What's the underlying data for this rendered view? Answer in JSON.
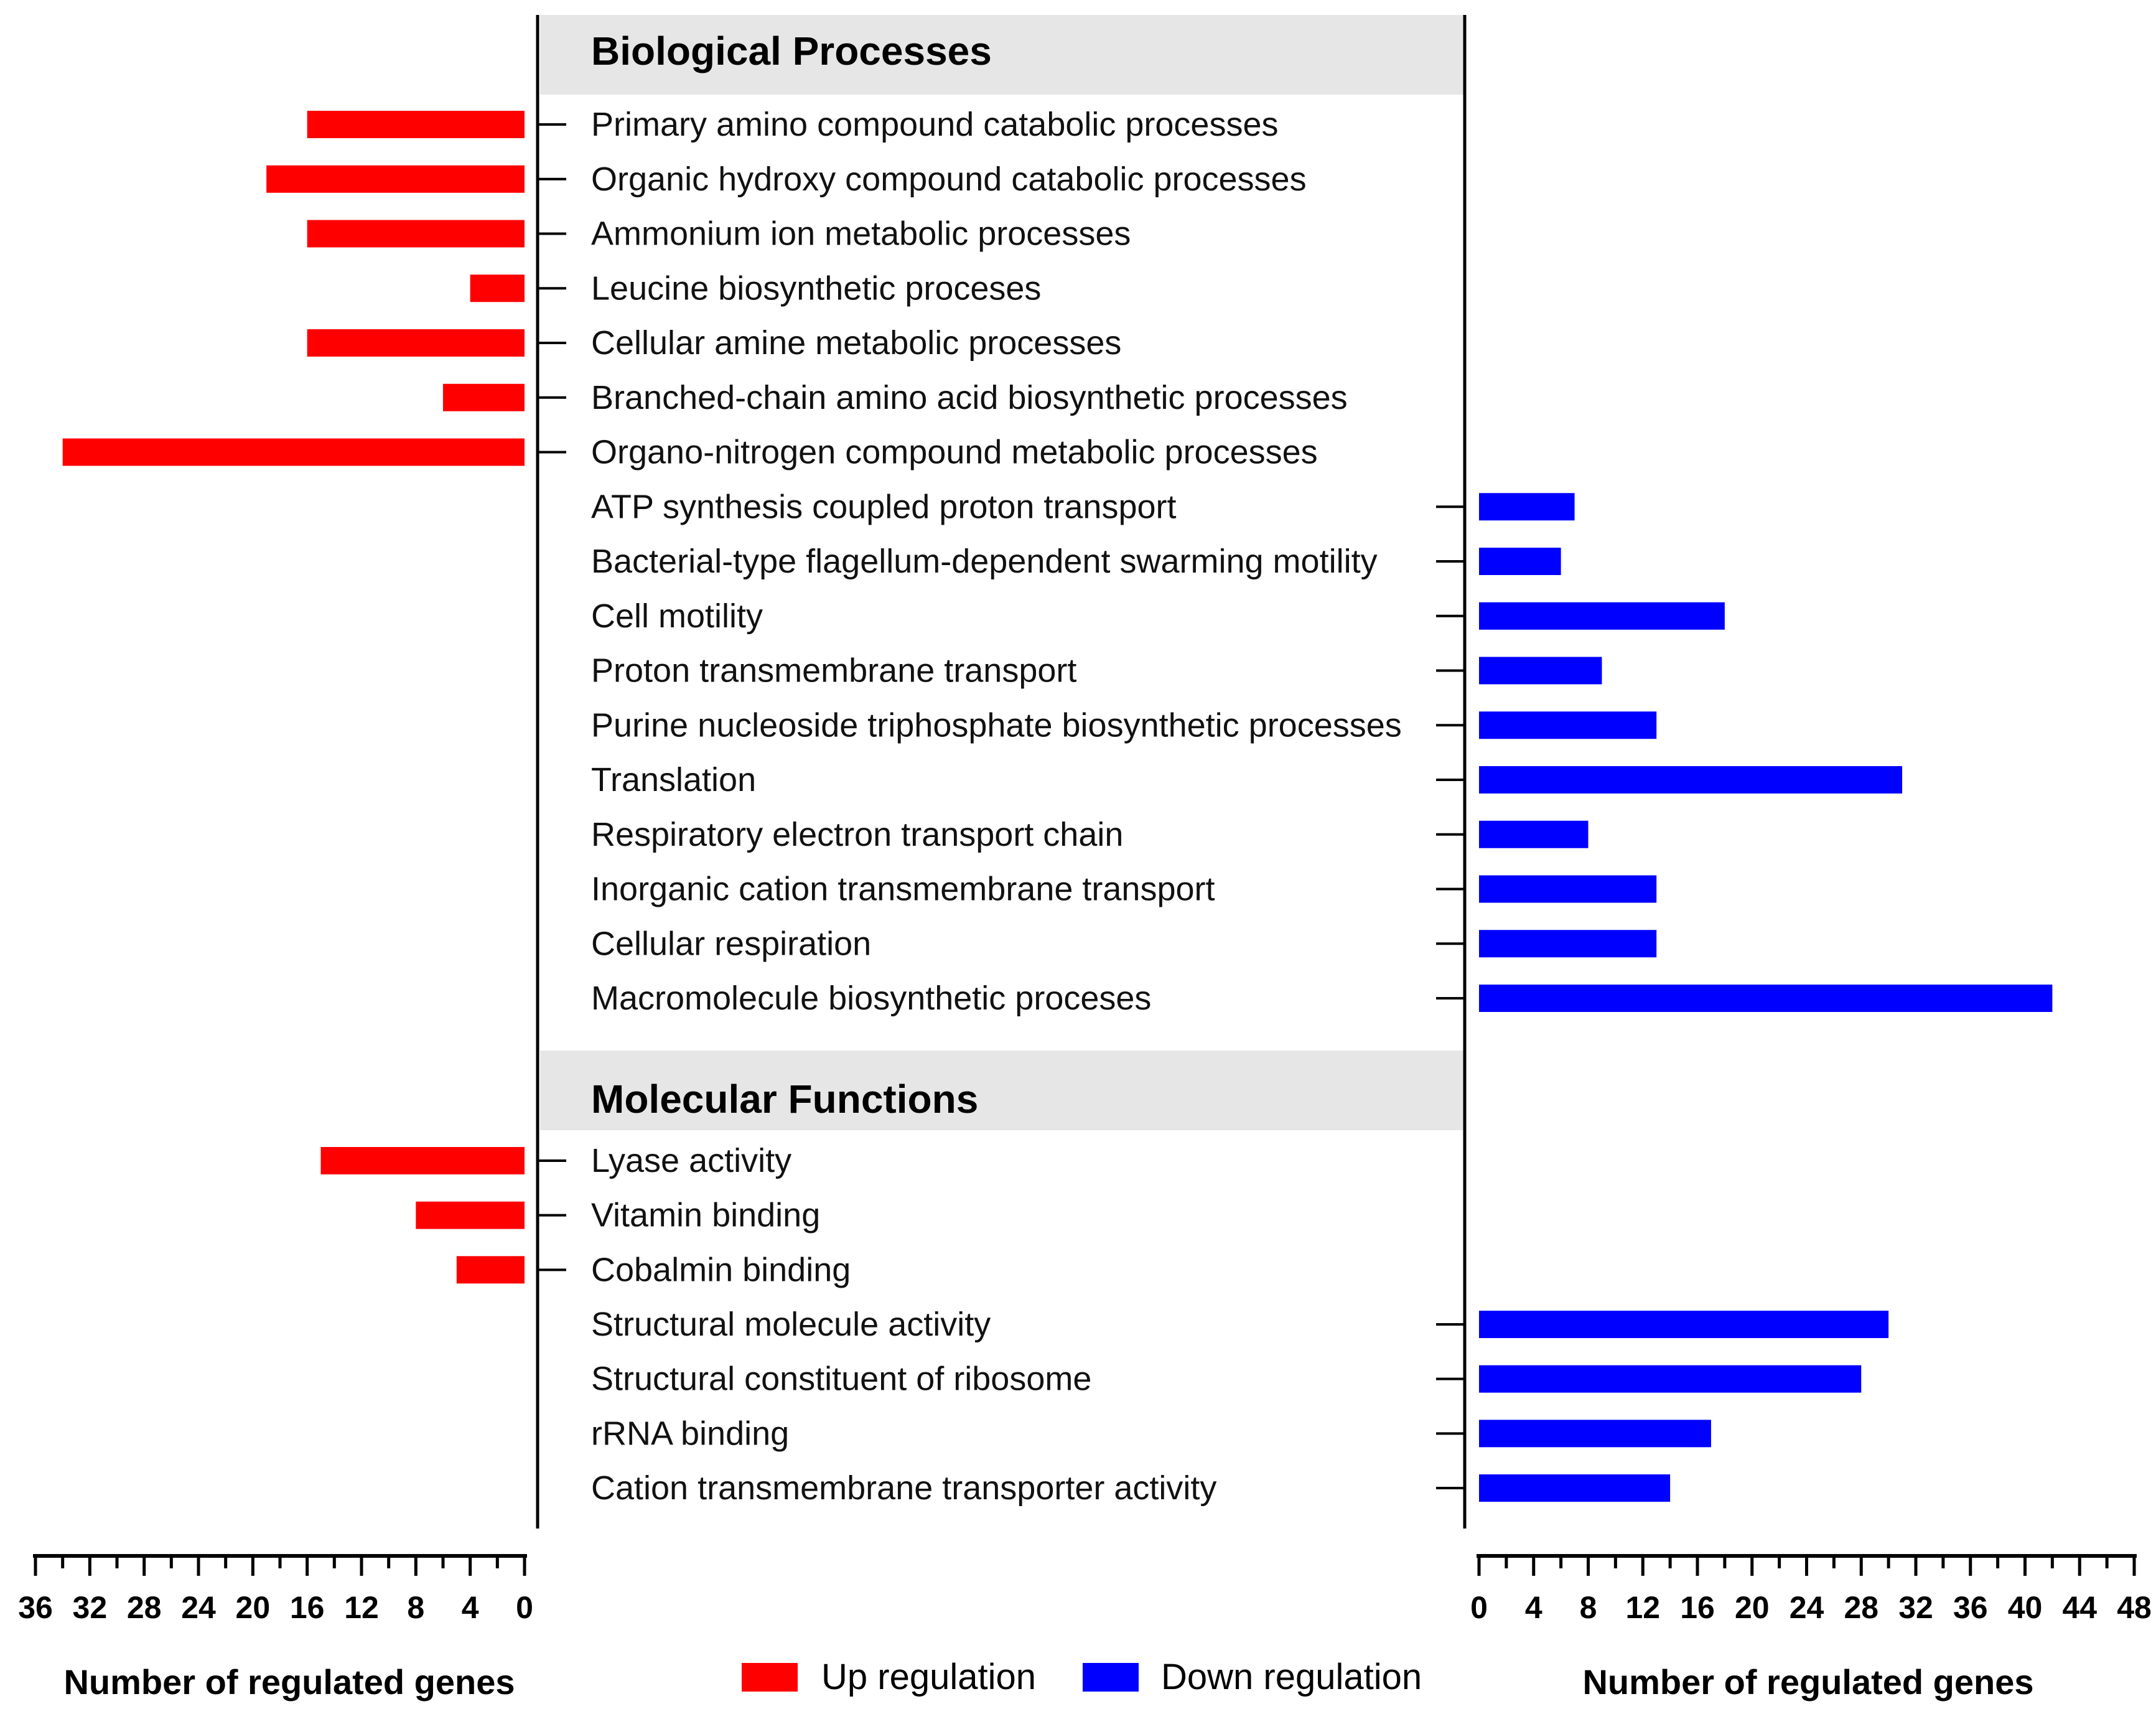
{
  "chart_data": {
    "type": "bar",
    "orientation": "horizontal-diverging",
    "sections": [
      {
        "title": "Biological Processes",
        "categories": [
          {
            "label": "Primary amino compound catabolic processes",
            "up": 16,
            "down": null
          },
          {
            "label": "Organic hydroxy compound catabolic processes",
            "up": 19,
            "down": null
          },
          {
            "label": "Ammonium ion metabolic processes",
            "up": 16,
            "down": null
          },
          {
            "label": "Leucine biosynthetic proceses",
            "up": 4,
            "down": null
          },
          {
            "label": "Cellular amine metabolic processes",
            "up": 16,
            "down": null
          },
          {
            "label": "Branched-chain amino acid biosynthetic processes",
            "up": 6,
            "down": null
          },
          {
            "label": "Organo-nitrogen compound metabolic processes",
            "up": 34,
            "down": null
          },
          {
            "label": "ATP synthesis coupled proton transport",
            "up": null,
            "down": 7
          },
          {
            "label": "Bacterial-type flagellum-dependent swarming motility",
            "up": null,
            "down": 6
          },
          {
            "label": "Cell motility",
            "up": null,
            "down": 18
          },
          {
            "label": "Proton transmembrane transport",
            "up": null,
            "down": 9
          },
          {
            "label": "Purine nucleoside triphosphate biosynthetic processes",
            "up": null,
            "down": 13
          },
          {
            "label": "Translation",
            "up": null,
            "down": 31
          },
          {
            "label": "Respiratory electron transport chain",
            "up": null,
            "down": 8
          },
          {
            "label": "Inorganic cation transmembrane transport",
            "up": null,
            "down": 13
          },
          {
            "label": "Cellular respiration",
            "up": null,
            "down": 13
          },
          {
            "label": "Macromolecule biosynthetic proceses",
            "up": null,
            "down": 42
          }
        ]
      },
      {
        "title": "Molecular Functions",
        "categories": [
          {
            "label": "Lyase activity",
            "up": 15,
            "down": null
          },
          {
            "label": "Vitamin binding",
            "up": 8,
            "down": null
          },
          {
            "label": "Cobalmin binding",
            "up": 5,
            "down": null
          },
          {
            "label": "Structural molecule activity",
            "up": null,
            "down": 30
          },
          {
            "label": "Structural constituent of ribosome",
            "up": null,
            "down": 28
          },
          {
            "label": "rRNA binding",
            "up": null,
            "down": 17
          },
          {
            "label": "Cation transmembrane transporter activity",
            "up": null,
            "down": 14
          }
        ]
      }
    ],
    "left_axis": {
      "xlabel": "Number of regulated genes",
      "range": [
        0,
        36
      ],
      "ticks": [
        36,
        32,
        28,
        24,
        20,
        16,
        12,
        8,
        4,
        0
      ],
      "direction": "reversed"
    },
    "right_axis": {
      "xlabel": "Number of regulated genes",
      "range": [
        0,
        48
      ],
      "ticks": [
        0,
        4,
        8,
        12,
        16,
        20,
        24,
        28,
        32,
        36,
        40,
        44,
        48
      ]
    },
    "legend": [
      {
        "label": "Up regulation",
        "color": "#ff0000"
      },
      {
        "label": "Down regulation",
        "color": "#0000ff"
      }
    ]
  }
}
